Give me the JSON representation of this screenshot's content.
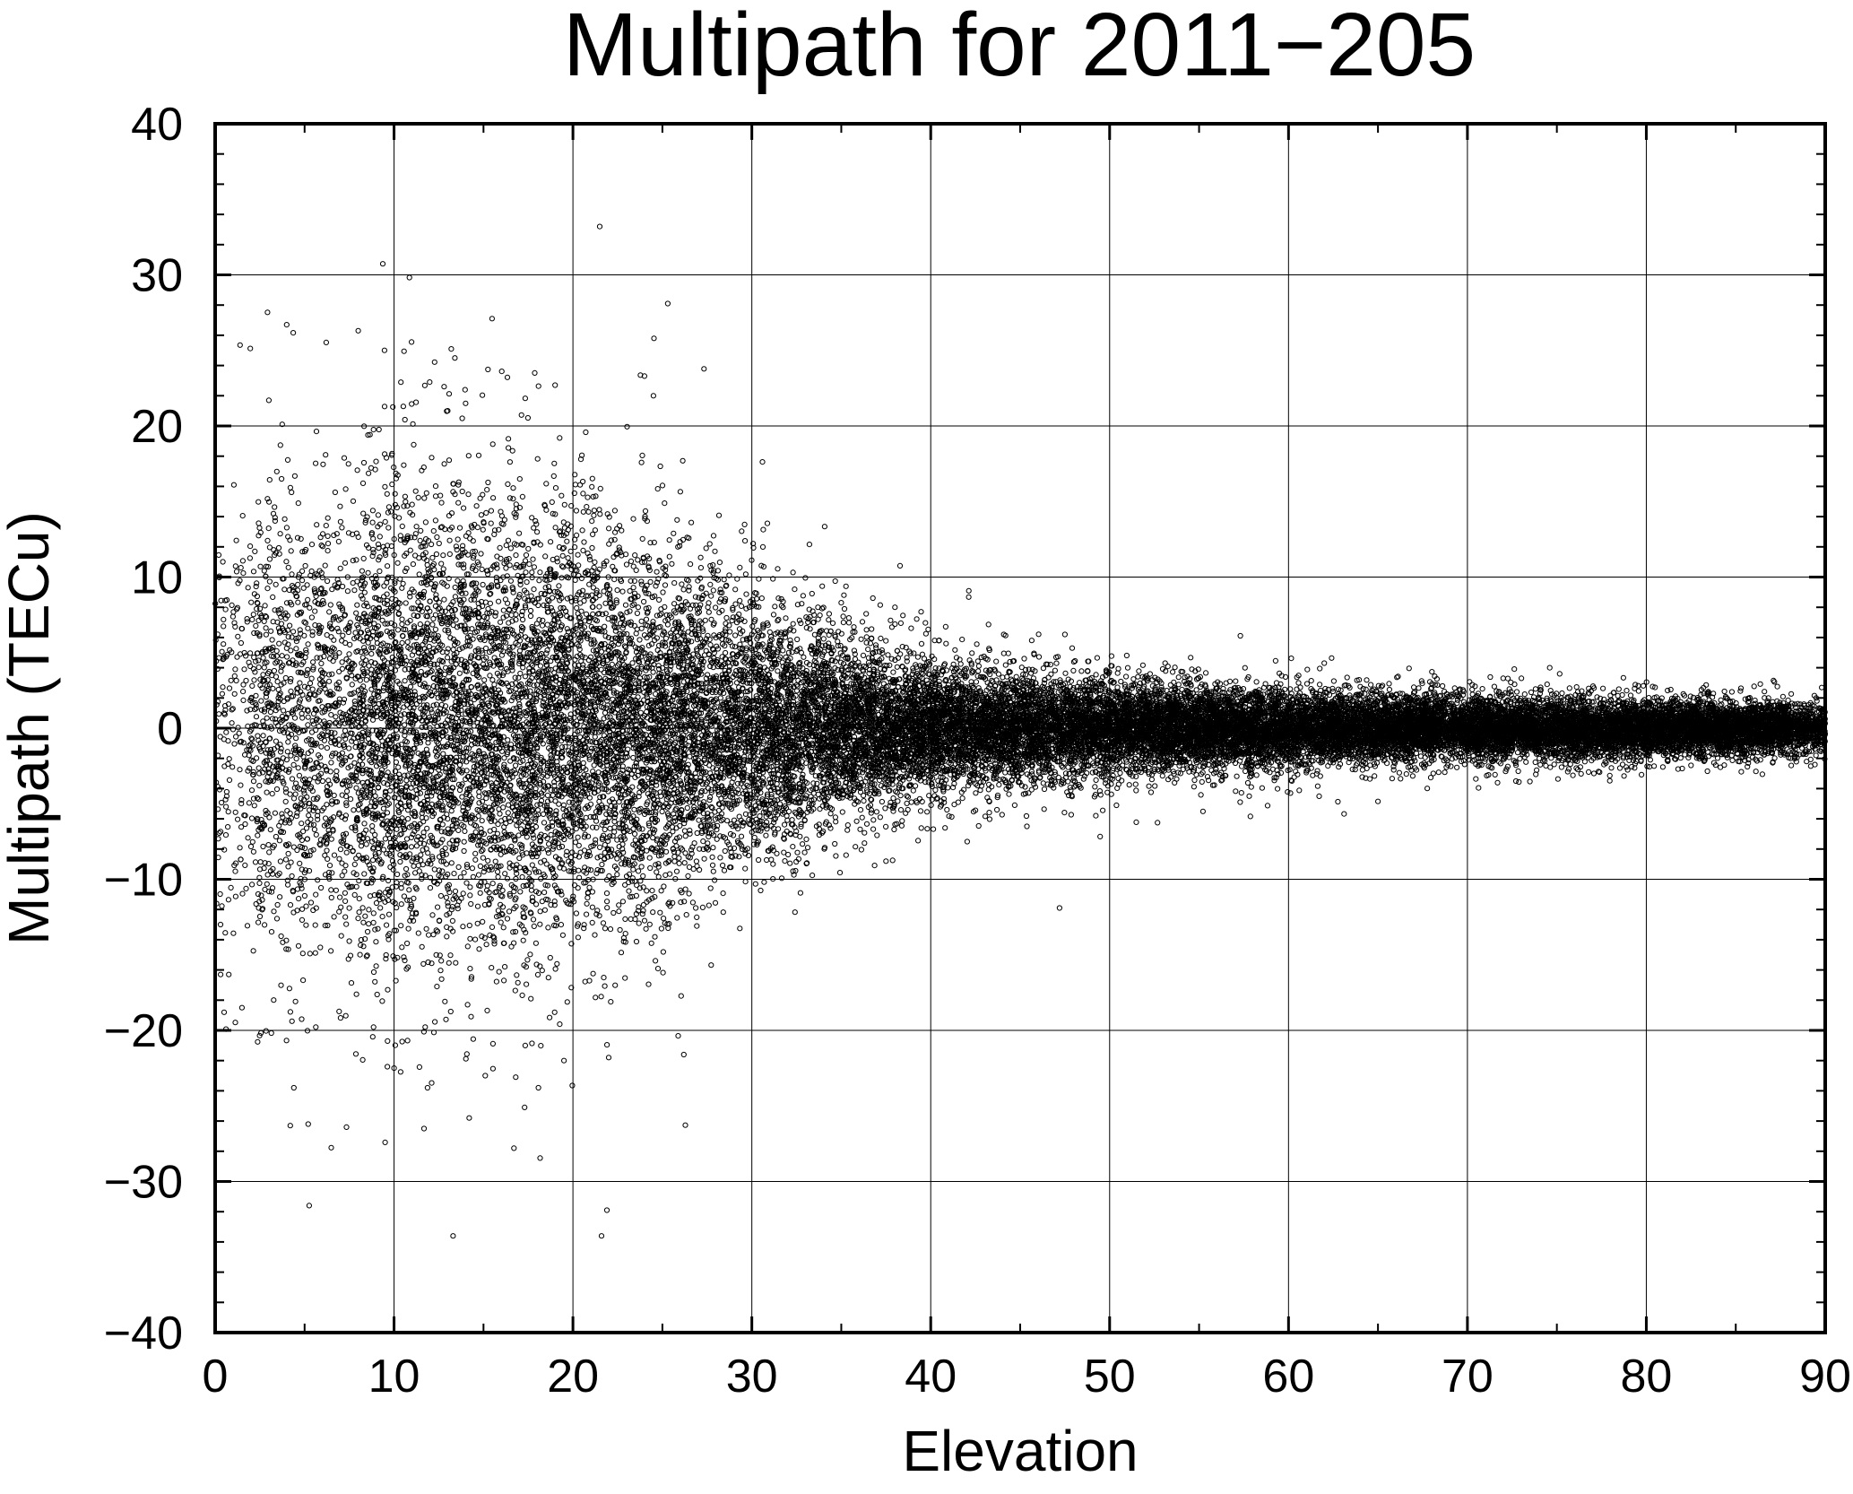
{
  "chart_data": {
    "type": "scatter",
    "title": "Multipath for 2011−205",
    "xlabel": "Elevation",
    "ylabel": "Multipath (TECu)",
    "xlim": [
      0,
      90
    ],
    "ylim": [
      -40,
      40
    ],
    "x_ticks": [
      "0",
      "10",
      "20",
      "30",
      "40",
      "50",
      "60",
      "70",
      "80",
      "90"
    ],
    "y_ticks": [
      "40",
      "30",
      "20",
      "10",
      "0",
      "−10",
      "−20",
      "−30",
      "−40"
    ],
    "grid": true,
    "marker": "star",
    "color": "#000000",
    "spread_profile": {
      "elevation": [
        0,
        5,
        10,
        15,
        20,
        25,
        30,
        35,
        40,
        50,
        60,
        70,
        80,
        90
      ],
      "std_multipath": [
        7.0,
        7.5,
        7.5,
        7.0,
        6.5,
        5.5,
        4.0,
        2.8,
        2.0,
        1.5,
        1.2,
        1.0,
        0.9,
        0.8
      ]
    },
    "outliers": [
      {
        "x": 3.0,
        "y": 21.7
      },
      {
        "x": 4.0,
        "y": 26.7
      },
      {
        "x": 8.0,
        "y": 26.3
      },
      {
        "x": 13.2,
        "y": 25.1
      },
      {
        "x": 13.4,
        "y": 24.5
      },
      {
        "x": 21.5,
        "y": 33.2
      },
      {
        "x": 25.3,
        "y": 28.1
      },
      {
        "x": 24.0,
        "y": 23.3
      },
      {
        "x": 24.5,
        "y": 22.0
      },
      {
        "x": 19.0,
        "y": 22.7
      },
      {
        "x": 12.8,
        "y": 22.6
      },
      {
        "x": 13.0,
        "y": 21.0
      },
      {
        "x": 47.2,
        "y": -11.9
      },
      {
        "x": 4.2,
        "y": -26.3
      },
      {
        "x": 5.2,
        "y": -26.2
      },
      {
        "x": 4.4,
        "y": -23.8
      },
      {
        "x": 13.3,
        "y": -33.6
      },
      {
        "x": 21.6,
        "y": -33.6
      },
      {
        "x": 21.9,
        "y": -31.9
      },
      {
        "x": 16.7,
        "y": -27.8
      },
      {
        "x": 17.3,
        "y": -25.1
      },
      {
        "x": 14.2,
        "y": -25.8
      },
      {
        "x": 15.1,
        "y": -23.0
      },
      {
        "x": 16.8,
        "y": -23.1
      },
      {
        "x": 10.0,
        "y": -22.5
      },
      {
        "x": 19.5,
        "y": -22.0
      },
      {
        "x": 22.0,
        "y": -21.8
      },
      {
        "x": 26.2,
        "y": -21.6
      },
      {
        "x": 0.5,
        "y": -18.8
      },
      {
        "x": 1.5,
        "y": -18.5
      },
      {
        "x": 0.3,
        "y": -13.0
      },
      {
        "x": 35.0,
        "y": 8.3
      },
      {
        "x": 38.0,
        "y": 8.0
      },
      {
        "x": 32.3,
        "y": 10.3
      },
      {
        "x": 37.5,
        "y": -8.8
      },
      {
        "x": 40.8,
        "y": -6.6
      },
      {
        "x": 47.5,
        "y": 6.2
      },
      {
        "x": 62.0,
        "y": 4.3
      },
      {
        "x": 72.0,
        "y": 3.3
      },
      {
        "x": 89.5,
        "y": 2.0
      }
    ],
    "sample_count": 30000
  }
}
